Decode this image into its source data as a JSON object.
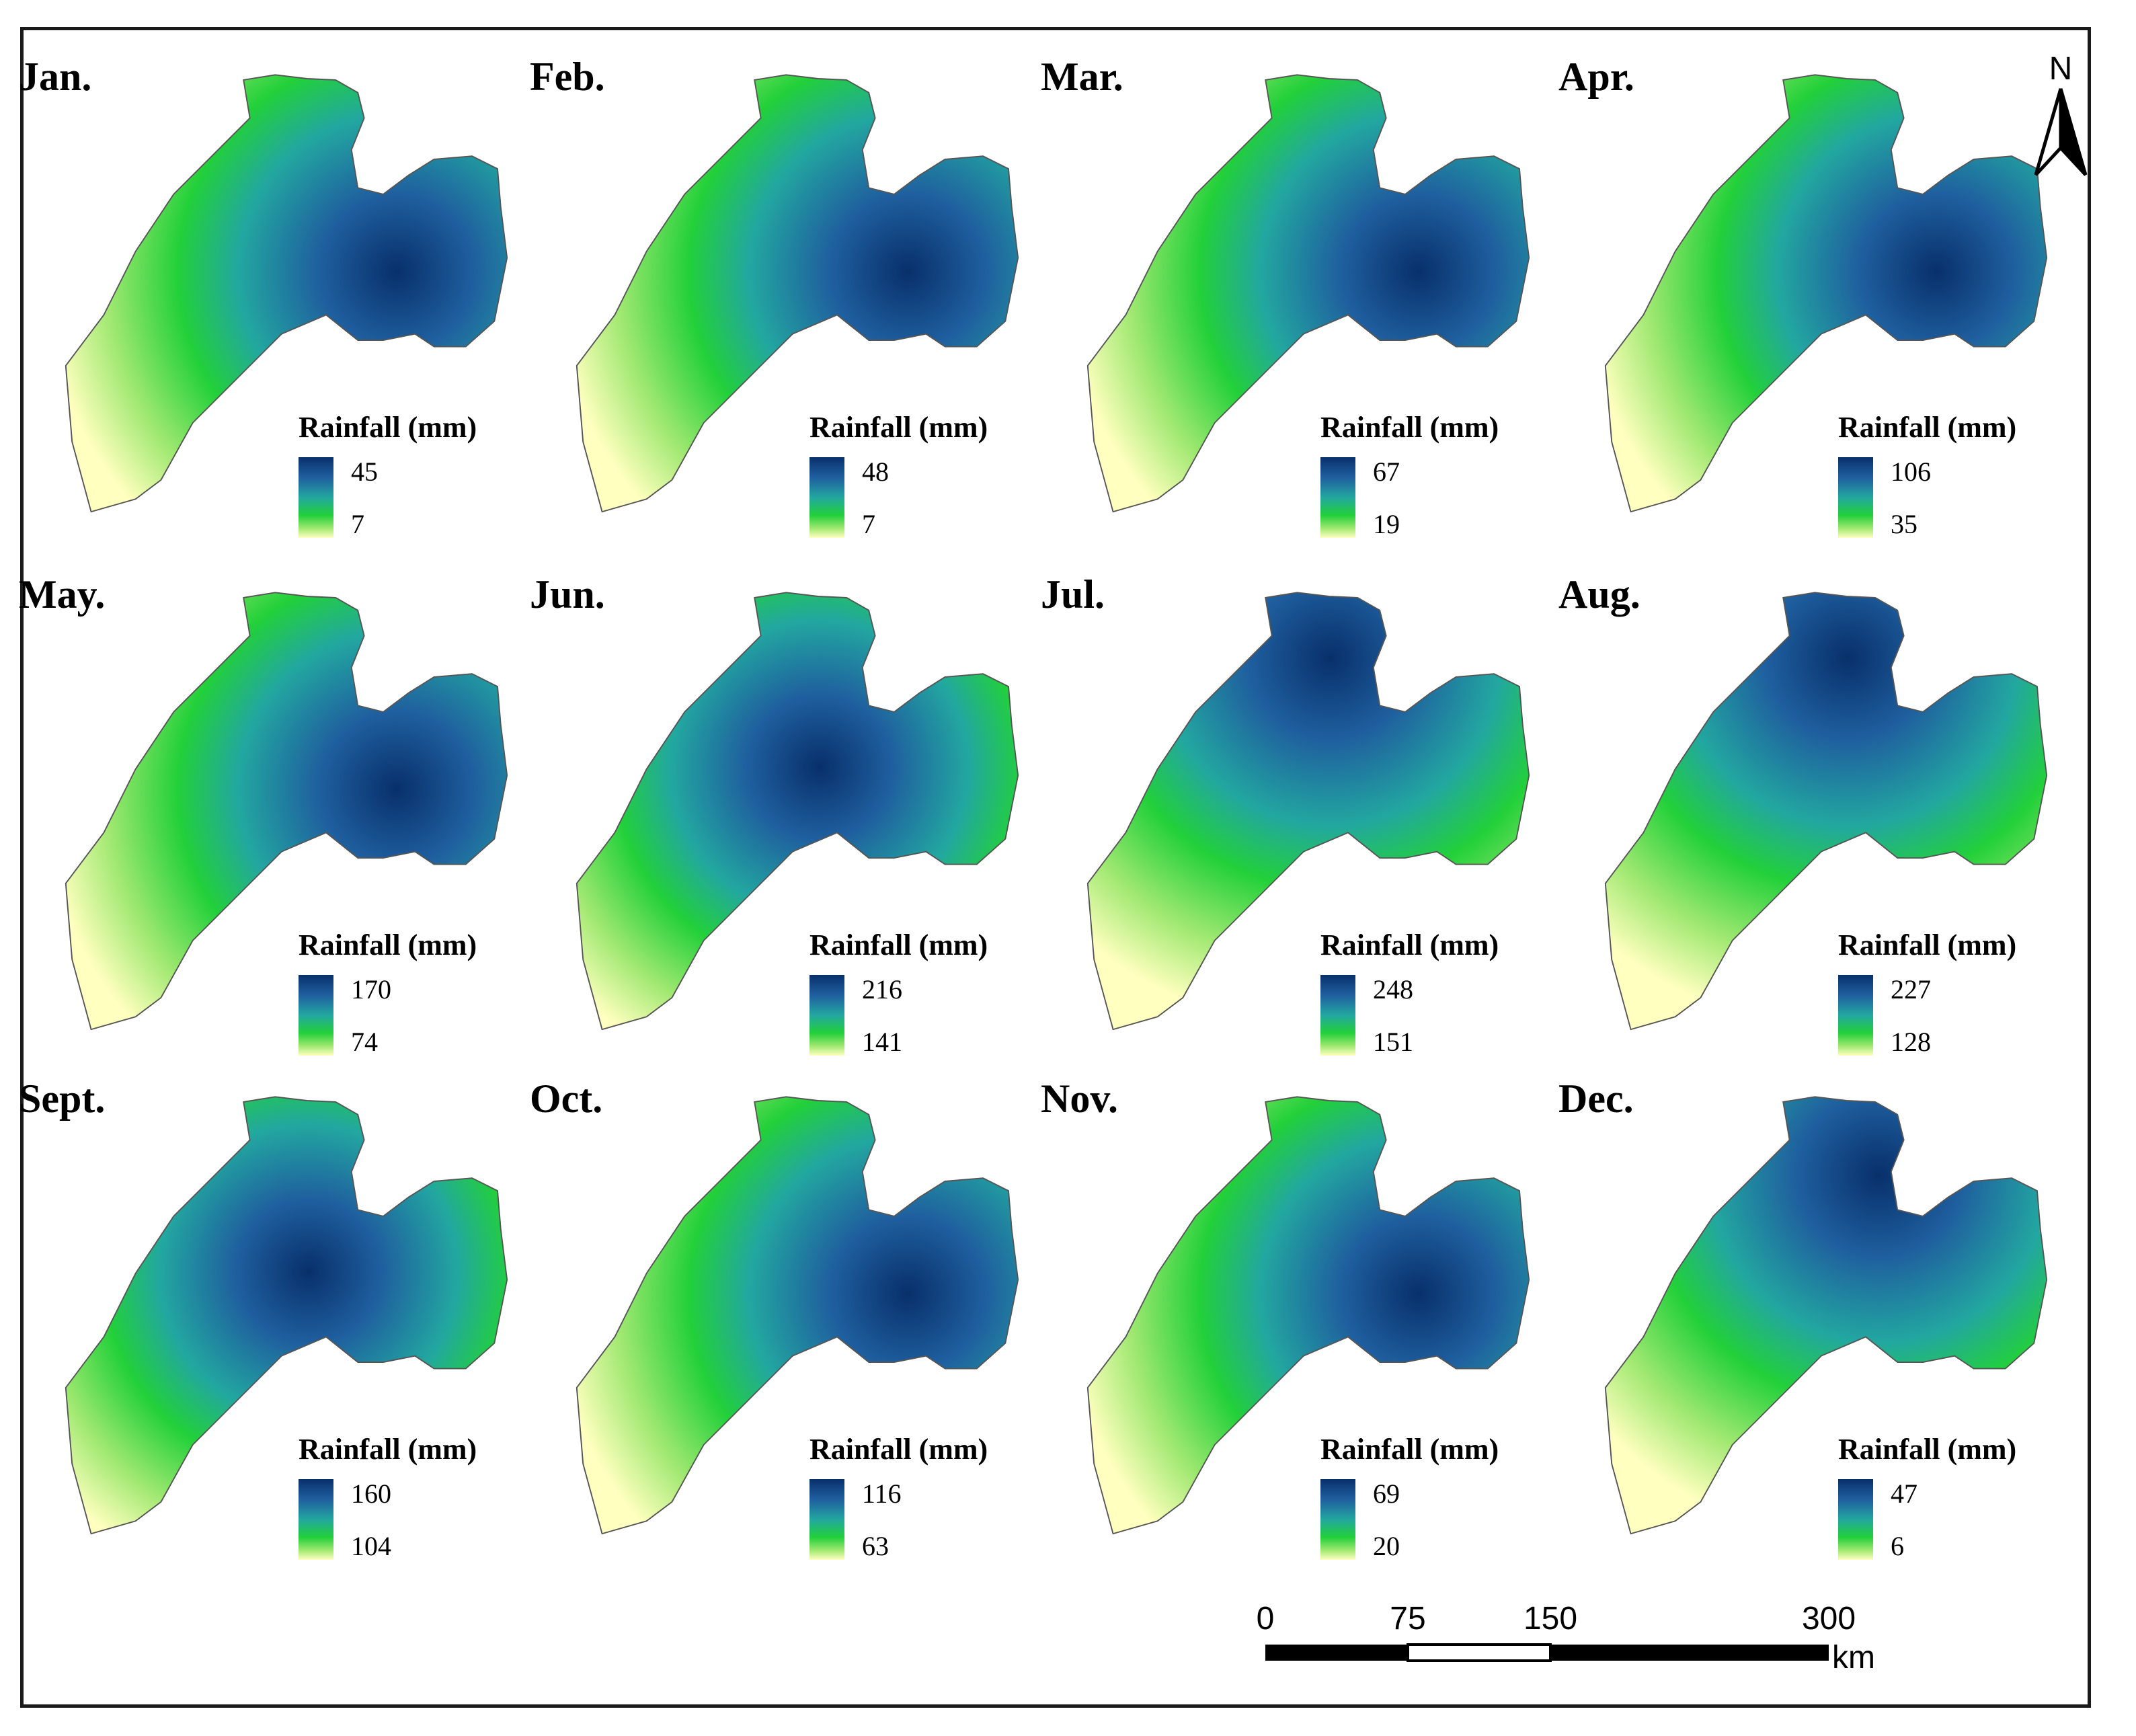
{
  "figure": {
    "legend_title": "Rainfall (mm)",
    "colormap": [
      "#ffffbf",
      "#9fe870",
      "#22d03a",
      "#22a7a0",
      "#1f5f9f",
      "#08306b"
    ],
    "panels": [
      {
        "month": "Jan.",
        "max": "45",
        "min": "7",
        "pattern": "east"
      },
      {
        "month": "Feb.",
        "max": "48",
        "min": "7",
        "pattern": "east"
      },
      {
        "month": "Mar.",
        "max": "67",
        "min": "19",
        "pattern": "east"
      },
      {
        "month": "Apr.",
        "max": "106",
        "min": "35",
        "pattern": "east"
      },
      {
        "month": "May.",
        "max": "170",
        "min": "74",
        "pattern": "east"
      },
      {
        "month": "Jun.",
        "max": "216",
        "min": "141",
        "pattern": "center"
      },
      {
        "month": "Jul.",
        "max": "248",
        "min": "151",
        "pattern": "north"
      },
      {
        "month": "Aug.",
        "max": "227",
        "min": "128",
        "pattern": "north"
      },
      {
        "month": "Sept.",
        "max": "160",
        "min": "104",
        "pattern": "center"
      },
      {
        "month": "Oct.",
        "max": "116",
        "min": "63",
        "pattern": "east"
      },
      {
        "month": "Nov.",
        "max": "69",
        "min": "20",
        "pattern": "east"
      },
      {
        "month": "Dec.",
        "max": "47",
        "min": "6",
        "pattern": "northeast"
      }
    ]
  },
  "north_arrow": {
    "label": "N"
  },
  "scale_bar": {
    "ticks": [
      "0",
      "75",
      "150",
      "300"
    ],
    "unit": "km"
  }
}
